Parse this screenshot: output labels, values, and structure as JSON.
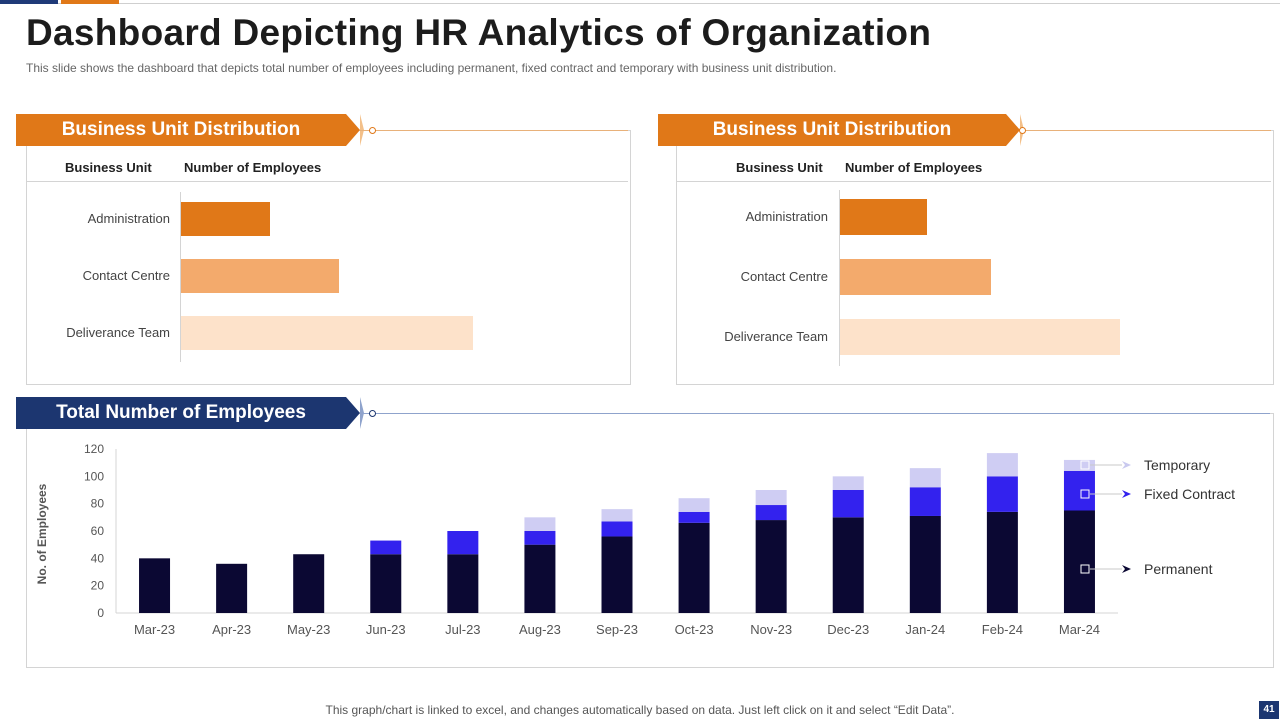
{
  "header": {
    "title": "Dashboard Depicting HR Analytics of Organization",
    "subtitle": "This slide shows the dashboard that depicts total number of employees including permanent, fixed contract and temporary with business unit distribution."
  },
  "colors": {
    "orange": "#e07818",
    "navy": "#1c3670",
    "permanent": "#0b0833",
    "fixed_contract": "#3322ee",
    "temporary": "#cfcdf3",
    "bu_administration": "#e07818",
    "bu_contact_centre": "#f3aa6c",
    "bu_deliverance_team": "#fde2ca"
  },
  "business_unit_left": {
    "banner": "Business Unit Distribution",
    "col_unit": "Business  Unit",
    "col_count": "Number of Employees",
    "units": [
      {
        "label": "Administration",
        "value": 22
      },
      {
        "label": "Contact Centre",
        "value": 39
      },
      {
        "label": "Deliverance Team",
        "value": 72
      }
    ]
  },
  "business_unit_right": {
    "banner": "Business Unit Distribution",
    "col_unit": "Business  Unit",
    "col_count": "Number of Employees",
    "units": [
      {
        "label": "Administration",
        "value": 27
      },
      {
        "label": "Contact Centre",
        "value": 47
      },
      {
        "label": "Deliverance Team",
        "value": 87
      }
    ]
  },
  "employees_panel": {
    "banner": "Total Number of Employees"
  },
  "footer": {
    "note": "This graph/chart is linked to excel, and changes automatically based on data. Just left click on it and select “Edit Data”.",
    "page": "41"
  },
  "chart_data": {
    "type": "bar",
    "stacked": true,
    "title": "Total Number of Employees",
    "xlabel": "",
    "ylabel": "No. of Employees",
    "ylim": [
      0,
      120
    ],
    "yticks": [
      0,
      20,
      40,
      60,
      80,
      100,
      120
    ],
    "categories": [
      "Mar-23",
      "Apr-23",
      "May-23",
      "Jun-23",
      "Jul-23",
      "Aug-23",
      "Sep-23",
      "Oct-23",
      "Nov-23",
      "Dec-23",
      "Jan-24",
      "Feb-24",
      "Mar-24"
    ],
    "series": [
      {
        "name": "Permanent",
        "values": [
          40,
          36,
          43,
          43,
          43,
          50,
          56,
          66,
          68,
          70,
          71,
          74,
          75
        ]
      },
      {
        "name": "Fixed Contract",
        "values": [
          0,
          0,
          0,
          10,
          17,
          10,
          11,
          8,
          11,
          20,
          21,
          26,
          29
        ]
      },
      {
        "name": "Temporary",
        "values": [
          0,
          0,
          0,
          0,
          0,
          10,
          9,
          10,
          11,
          10,
          14,
          17,
          8
        ]
      }
    ],
    "legend": [
      "Temporary",
      "Fixed Contract",
      "Permanent"
    ],
    "legend_position": "right"
  }
}
